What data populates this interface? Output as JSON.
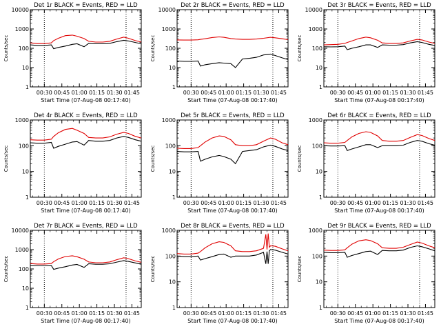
{
  "figure": {
    "xlabel": "Start Time (07-Aug-08 00:17:40)",
    "ylabel": "Counts/sec"
  },
  "chart_data": [
    {
      "type": "line",
      "title": "Det 1r BLACK = Events, RED = LLD",
      "xlabel": "Start Time (07-Aug-08 00:17:40)",
      "ylabel": "Counts/sec",
      "log_y": true,
      "ylim": [
        1,
        10000
      ],
      "yticks": [
        "1",
        "10",
        "100",
        "1000",
        "10000"
      ],
      "xlim": [
        "00:18",
        "01:53"
      ],
      "xticks": [
        "00:30",
        "00:45",
        "01:00",
        "01:15",
        "01:30",
        "01:45"
      ],
      "vlines": [
        "00:30",
        "01:40"
      ],
      "x": [
        "00:18",
        "00:24",
        "00:30",
        "00:36",
        "00:38",
        "00:42",
        "00:48",
        "00:54",
        "00:58",
        "01:04",
        "01:08",
        "01:14",
        "01:20",
        "01:26",
        "01:32",
        "01:38",
        "01:42",
        "01:48",
        "01:53"
      ],
      "series": [
        {
          "name": "RED = LLD",
          "color": "#e00000",
          "values": [
            190,
            175,
            175,
            190,
            250,
            330,
            450,
            480,
            420,
            320,
            230,
            210,
            210,
            230,
            300,
            380,
            330,
            250,
            210
          ]
        },
        {
          "name": "BLACK = Events",
          "color": "#000000",
          "values": [
            150,
            140,
            140,
            150,
            95,
            110,
            130,
            160,
            170,
            120,
            180,
            170,
            170,
            180,
            220,
            260,
            240,
            200,
            170
          ]
        }
      ]
    },
    {
      "type": "line",
      "title": "Det 2r BLACK = Events, RED = LLD",
      "xlabel": "Start Time (07-Aug-08 00:17:40)",
      "ylabel": "Counts/sec",
      "log_y": true,
      "ylim": [
        1,
        10000
      ],
      "yticks": [
        "1",
        "10",
        "100",
        "1000",
        "10000"
      ],
      "xlim": [
        "00:18",
        "01:53"
      ],
      "xticks": [
        "00:30",
        "00:45",
        "01:00",
        "01:15",
        "01:30",
        "01:45"
      ],
      "vlines": [
        "00:30",
        "01:40"
      ],
      "x": [
        "00:18",
        "00:24",
        "00:30",
        "00:36",
        "00:38",
        "00:42",
        "00:48",
        "00:54",
        "00:58",
        "01:04",
        "01:08",
        "01:14",
        "01:20",
        "01:26",
        "01:32",
        "01:38",
        "01:42",
        "01:48",
        "01:53"
      ],
      "series": [
        {
          "name": "RED = LLD",
          "color": "#e00000",
          "values": [
            270,
            265,
            265,
            275,
            290,
            310,
            360,
            390,
            370,
            320,
            300,
            290,
            290,
            300,
            330,
            370,
            350,
            310,
            280
          ]
        },
        {
          "name": "BLACK = Events",
          "color": "#000000",
          "values": [
            22,
            21,
            21,
            22,
            12,
            14,
            16,
            18,
            17,
            16,
            10,
            28,
            30,
            34,
            45,
            50,
            42,
            32,
            26
          ]
        }
      ]
    },
    {
      "type": "line",
      "title": "Det 3r BLACK = Events, RED = LLD",
      "xlabel": "Start Time (07-Aug-08 00:17:40)",
      "ylabel": "Counts/sec",
      "log_y": true,
      "ylim": [
        1,
        10000
      ],
      "yticks": [
        "1",
        "10",
        "100",
        "1000",
        "10000"
      ],
      "xlim": [
        "00:18",
        "01:53"
      ],
      "xticks": [
        "00:30",
        "00:45",
        "01:00",
        "01:15",
        "01:30",
        "01:45"
      ],
      "vlines": [
        "00:30",
        "01:40"
      ],
      "x": [
        "00:18",
        "00:24",
        "00:30",
        "00:36",
        "00:38",
        "00:42",
        "00:48",
        "00:54",
        "00:58",
        "01:04",
        "01:08",
        "01:14",
        "01:20",
        "01:26",
        "01:32",
        "01:38",
        "01:42",
        "01:48",
        "01:53"
      ],
      "series": [
        {
          "name": "RED = LLD",
          "color": "#e00000",
          "values": [
            150,
            155,
            160,
            180,
            200,
            240,
            320,
            380,
            350,
            260,
            190,
            180,
            180,
            190,
            240,
            290,
            270,
            210,
            180
          ]
        },
        {
          "name": "BLACK = Events",
          "color": "#000000",
          "values": [
            120,
            118,
            120,
            130,
            85,
            100,
            120,
            150,
            150,
            110,
            150,
            145,
            145,
            155,
            190,
            220,
            200,
            160,
            140
          ]
        }
      ]
    },
    {
      "type": "line",
      "title": "Det 4r BLACK = Events, RED = LLD",
      "xlabel": "Start Time (07-Aug-08 00:17:40)",
      "ylabel": "Counts/sec",
      "log_y": true,
      "ylim": [
        1,
        1000
      ],
      "yticks": [
        "1",
        "10",
        "100",
        "1000"
      ],
      "xlim": [
        "00:18",
        "01:53"
      ],
      "xticks": [
        "00:30",
        "00:45",
        "01:00",
        "01:15",
        "01:30",
        "01:45"
      ],
      "vlines": [
        "00:30",
        "01:40"
      ],
      "x": [
        "00:18",
        "00:24",
        "00:30",
        "00:36",
        "00:38",
        "00:42",
        "00:48",
        "00:54",
        "00:58",
        "01:04",
        "01:08",
        "01:14",
        "01:20",
        "01:26",
        "01:32",
        "01:38",
        "01:42",
        "01:48",
        "01:53"
      ],
      "series": [
        {
          "name": "RED = LLD",
          "color": "#e00000",
          "values": [
            170,
            165,
            165,
            180,
            230,
            320,
            430,
            470,
            400,
            300,
            210,
            200,
            200,
            220,
            280,
            330,
            300,
            230,
            200
          ]
        },
        {
          "name": "BLACK = Events",
          "color": "#000000",
          "values": [
            130,
            125,
            125,
            135,
            80,
            95,
            115,
            140,
            145,
            105,
            160,
            150,
            150,
            160,
            200,
            230,
            210,
            170,
            150
          ]
        }
      ]
    },
    {
      "type": "line",
      "title": "Det 5r BLACK = Events, RED = LLD",
      "xlabel": "Start Time (07-Aug-08 00:17:40)",
      "ylabel": "Counts/sec",
      "log_y": true,
      "ylim": [
        1,
        1000
      ],
      "yticks": [
        "1",
        "10",
        "100",
        "1000"
      ],
      "xlim": [
        "00:18",
        "01:53"
      ],
      "xticks": [
        "00:30",
        "00:45",
        "01:00",
        "01:15",
        "01:30",
        "01:45"
      ],
      "vlines": [
        "00:30",
        "01:40"
      ],
      "x": [
        "00:18",
        "00:24",
        "00:30",
        "00:36",
        "00:38",
        "00:42",
        "00:48",
        "00:54",
        "00:58",
        "01:04",
        "01:08",
        "01:14",
        "01:20",
        "01:26",
        "01:32",
        "01:38",
        "01:42",
        "01:48",
        "01:53"
      ],
      "series": [
        {
          "name": "RED = LLD",
          "color": "#e00000",
          "values": [
            80,
            78,
            78,
            85,
            100,
            140,
            200,
            240,
            230,
            170,
            110,
            100,
            100,
            110,
            150,
            200,
            180,
            130,
            110
          ]
        },
        {
          "name": "BLACK = Events",
          "color": "#000000",
          "values": [
            60,
            58,
            58,
            60,
            25,
            30,
            37,
            42,
            38,
            30,
            20,
            60,
            65,
            70,
            90,
            105,
            95,
            75,
            65
          ]
        }
      ]
    },
    {
      "type": "line",
      "title": "Det 6r BLACK = Events, RED = LLD",
      "xlabel": "Start Time (07-Aug-08 00:17:40)",
      "ylabel": "Counts/sec",
      "log_y": true,
      "ylim": [
        1,
        1000
      ],
      "yticks": [
        "1",
        "10",
        "100",
        "1000"
      ],
      "xlim": [
        "00:18",
        "01:53"
      ],
      "xticks": [
        "00:30",
        "00:45",
        "01:00",
        "01:15",
        "01:30",
        "01:45"
      ],
      "vlines": [
        "00:30",
        "01:40"
      ],
      "x": [
        "00:18",
        "00:24",
        "00:30",
        "00:36",
        "00:38",
        "00:42",
        "00:48",
        "00:54",
        "00:58",
        "01:04",
        "01:08",
        "01:14",
        "01:20",
        "01:26",
        "01:32",
        "01:38",
        "01:42",
        "01:48",
        "01:53"
      ],
      "series": [
        {
          "name": "RED = LLD",
          "color": "#e00000",
          "values": [
            130,
            125,
            125,
            135,
            160,
            220,
            300,
            350,
            330,
            240,
            160,
            150,
            150,
            160,
            210,
            270,
            250,
            190,
            160
          ]
        },
        {
          "name": "BLACK = Events",
          "color": "#000000",
          "values": [
            100,
            98,
            98,
            100,
            65,
            75,
            90,
            110,
            110,
            85,
            100,
            100,
            100,
            105,
            135,
            160,
            150,
            120,
            105
          ]
        }
      ]
    },
    {
      "type": "line",
      "title": "Det 7r BLACK = Events, RED = LLD",
      "xlabel": "Start Time (07-Aug-08 00:17:40)",
      "ylabel": "Counts/sec",
      "log_y": true,
      "ylim": [
        1,
        10000
      ],
      "yticks": [
        "1",
        "10",
        "100",
        "1000",
        "10000"
      ],
      "xlim": [
        "00:18",
        "01:53"
      ],
      "xticks": [
        "00:30",
        "00:45",
        "01:00",
        "01:15",
        "01:30",
        "01:45"
      ],
      "vlines": [
        "00:30",
        "01:40"
      ],
      "x": [
        "00:18",
        "00:24",
        "00:30",
        "00:36",
        "00:38",
        "00:42",
        "00:48",
        "00:54",
        "00:58",
        "01:04",
        "01:08",
        "01:14",
        "01:20",
        "01:26",
        "01:32",
        "01:38",
        "01:42",
        "01:48",
        "01:53"
      ],
      "series": [
        {
          "name": "RED = LLD",
          "color": "#e00000",
          "values": [
            190,
            180,
            180,
            190,
            240,
            330,
            440,
            480,
            430,
            320,
            230,
            210,
            210,
            230,
            300,
            380,
            340,
            260,
            220
          ]
        },
        {
          "name": "BLACK = Events",
          "color": "#000000",
          "values": [
            150,
            145,
            145,
            150,
            95,
            110,
            130,
            160,
            170,
            120,
            185,
            175,
            175,
            185,
            225,
            270,
            245,
            205,
            175
          ]
        }
      ]
    },
    {
      "type": "line",
      "title": "Det 8r BLACK = Events, RED = LLD",
      "xlabel": "Start Time (07-Aug-08 00:17:40)",
      "ylabel": "Counts/sec",
      "log_y": true,
      "ylim": [
        1,
        1000
      ],
      "yticks": [
        "1",
        "10",
        "100",
        "1000"
      ],
      "xlim": [
        "00:18",
        "01:53"
      ],
      "xticks": [
        "00:30",
        "00:45",
        "01:00",
        "01:15",
        "01:30",
        "01:45"
      ],
      "vlines": [
        "00:30",
        "01:40"
      ],
      "x": [
        "00:18",
        "00:24",
        "00:30",
        "00:36",
        "00:38",
        "00:42",
        "00:48",
        "00:54",
        "00:58",
        "01:04",
        "01:08",
        "01:14",
        "01:20",
        "01:26",
        "01:32",
        "01:34",
        "01:35",
        "01:36",
        "01:37",
        "01:38",
        "01:42",
        "01:48",
        "01:53"
      ],
      "series": [
        {
          "name": "RED = LLD",
          "color": "#e00000",
          "values": [
            125,
            120,
            120,
            130,
            150,
            210,
            300,
            360,
            340,
            250,
            160,
            150,
            150,
            160,
            200,
            700,
            180,
            750,
            220,
            250,
            240,
            190,
            160
          ]
        },
        {
          "name": "BLACK = Events",
          "color": "#000000",
          "values": [
            100,
            95,
            95,
            100,
            70,
            80,
            95,
            115,
            120,
            90,
            100,
            100,
            100,
            110,
            140,
            50,
            150,
            50,
            160,
            180,
            170,
            140,
            120
          ]
        }
      ]
    },
    {
      "type": "line",
      "title": "Det 9r BLACK = Events, RED = LLD",
      "xlabel": "Start Time (07-Aug-08 00:17:40)",
      "ylabel": "Counts/sec",
      "log_y": true,
      "ylim": [
        1,
        1000
      ],
      "yticks": [
        "1",
        "10",
        "100",
        "1000"
      ],
      "xlim": [
        "00:18",
        "01:53"
      ],
      "xticks": [
        "00:30",
        "00:45",
        "01:00",
        "01:15",
        "01:30",
        "01:45"
      ],
      "vlines": [
        "00:30",
        "01:40"
      ],
      "x": [
        "00:18",
        "00:24",
        "00:30",
        "00:36",
        "00:38",
        "00:42",
        "00:48",
        "00:54",
        "00:58",
        "01:04",
        "01:08",
        "01:14",
        "01:20",
        "01:26",
        "01:32",
        "01:38",
        "01:42",
        "01:48",
        "01:53"
      ],
      "series": [
        {
          "name": "RED = LLD",
          "color": "#e00000",
          "values": [
            170,
            165,
            165,
            175,
            210,
            290,
            390,
            430,
            400,
            300,
            210,
            200,
            200,
            220,
            280,
            350,
            320,
            250,
            210
          ]
        },
        {
          "name": "BLACK = Events",
          "color": "#000000",
          "values": [
            140,
            135,
            135,
            140,
            90,
            105,
            125,
            150,
            155,
            115,
            165,
            160,
            160,
            170,
            215,
            250,
            230,
            190,
            160
          ]
        }
      ]
    }
  ]
}
